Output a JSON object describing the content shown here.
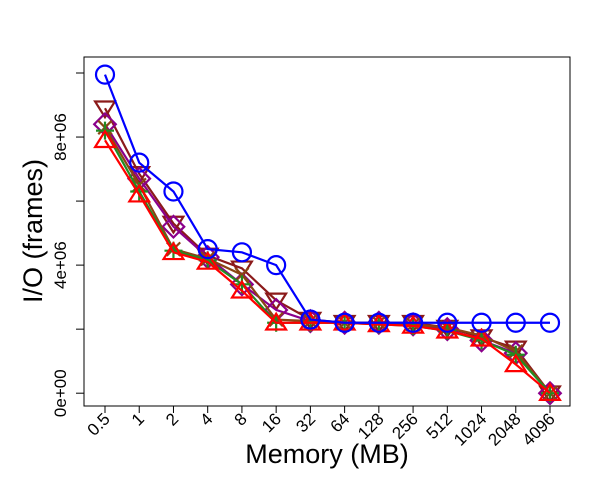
{
  "chart_data": {
    "type": "line",
    "title": "",
    "xlabel": "Memory (MB)",
    "ylabel": "I/O (frames)",
    "categories": [
      "0.5",
      "1",
      "2",
      "4",
      "8",
      "16",
      "32",
      "64",
      "128",
      "256",
      "512",
      "1024",
      "2048",
      "4096"
    ],
    "y_ticks": [
      0,
      4000000,
      8000000
    ],
    "y_tick_labels": [
      "0e+00",
      "4e+06",
      "8e+06"
    ],
    "ylim": [
      -400000,
      10500000
    ],
    "grid": false,
    "series": [
      {
        "color": "#0000ff",
        "marker": "circle",
        "values": [
          9950000,
          7200000,
          6300000,
          4500000,
          4400000,
          4000000,
          2300000,
          2200000,
          2200000,
          2200000,
          2200000,
          2200000,
          2200000,
          2200000
        ]
      },
      {
        "color": "#ff0000",
        "marker": "triangle-up",
        "values": [
          7900000,
          6200000,
          4400000,
          4100000,
          3200000,
          2200000,
          2200000,
          2200000,
          2150000,
          2100000,
          1950000,
          1700000,
          900000,
          0
        ]
      },
      {
        "color": "#228b22",
        "marker": "plus",
        "values": [
          8200000,
          6300000,
          4450000,
          4150000,
          3400000,
          2200000,
          2200000,
          2200000,
          2150000,
          2100000,
          1950000,
          1650000,
          1200000,
          0
        ]
      },
      {
        "color": "#8b4513",
        "marker": "x",
        "values": [
          8300000,
          6500000,
          4500000,
          4200000,
          3700000,
          2300000,
          2250000,
          2200000,
          2200000,
          2150000,
          2050000,
          1800000,
          1300000,
          0
        ]
      },
      {
        "color": "#8b008b",
        "marker": "diamond",
        "values": [
          8400000,
          6700000,
          5200000,
          4250000,
          3400000,
          2600000,
          2250000,
          2200000,
          2200000,
          2150000,
          2000000,
          1650000,
          1250000,
          0
        ]
      },
      {
        "color": "#8b1a1a",
        "marker": "triangle-down",
        "values": [
          8900000,
          6850000,
          5300000,
          4300000,
          3900000,
          2900000,
          2300000,
          2200000,
          2200000,
          2200000,
          2050000,
          1750000,
          1400000,
          0
        ]
      }
    ]
  }
}
